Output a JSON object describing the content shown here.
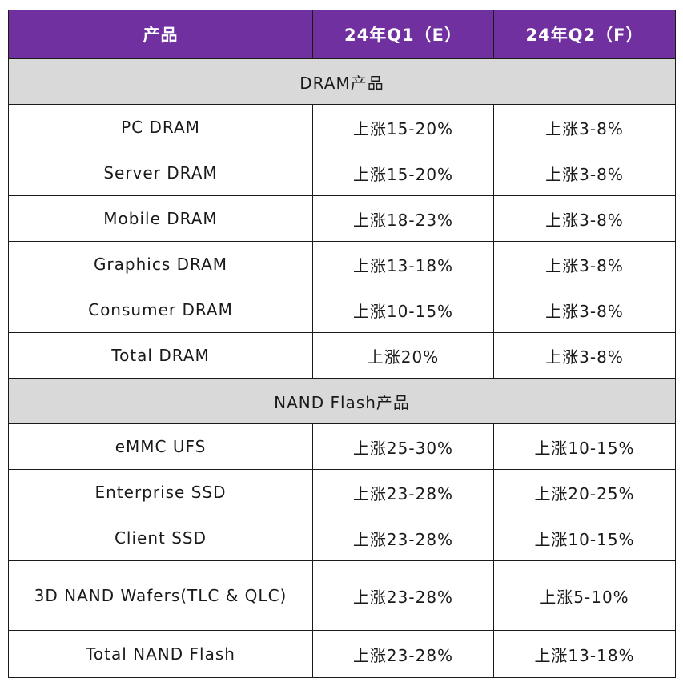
{
  "header": {
    "col_product": "产品",
    "col_q1": "24年Q1（E）",
    "col_q2": "24年Q2（F）"
  },
  "groups": [
    {
      "title": "DRAM产品",
      "rows": [
        {
          "product": "PC DRAM",
          "q1": "上涨15-20%",
          "q2": "上涨3-8%"
        },
        {
          "product": "Server DRAM",
          "q1": "上涨15-20%",
          "q2": "上涨3-8%"
        },
        {
          "product": "Mobile DRAM",
          "q1": "上涨18-23%",
          "q2": "上涨3-8%"
        },
        {
          "product": "Graphics DRAM",
          "q1": "上涨13-18%",
          "q2": "上涨3-8%"
        },
        {
          "product": "Consumer DRAM",
          "q1": "上涨10-15%",
          "q2": "上涨3-8%"
        },
        {
          "product": "Total DRAM",
          "q1": "上涨20%",
          "q2": "上涨3-8%"
        }
      ]
    },
    {
      "title": "NAND Flash产品",
      "rows": [
        {
          "product": "eMMC UFS",
          "q1": "上涨25-30%",
          "q2": "上涨10-15%"
        },
        {
          "product": "Enterprise SSD",
          "q1": "上涨23-28%",
          "q2": "上涨20-25%"
        },
        {
          "product": "Client SSD",
          "q1": "上涨23-28%",
          "q2": "上涨10-15%"
        },
        {
          "product": "3D NAND Wafers(TLC & QLC)",
          "q1": "上涨23-28%",
          "q2": "上涨5-10%"
        },
        {
          "product": "Total NAND Flash",
          "q1": "上涨23-28%",
          "q2": "上涨13-18%"
        }
      ]
    }
  ]
}
